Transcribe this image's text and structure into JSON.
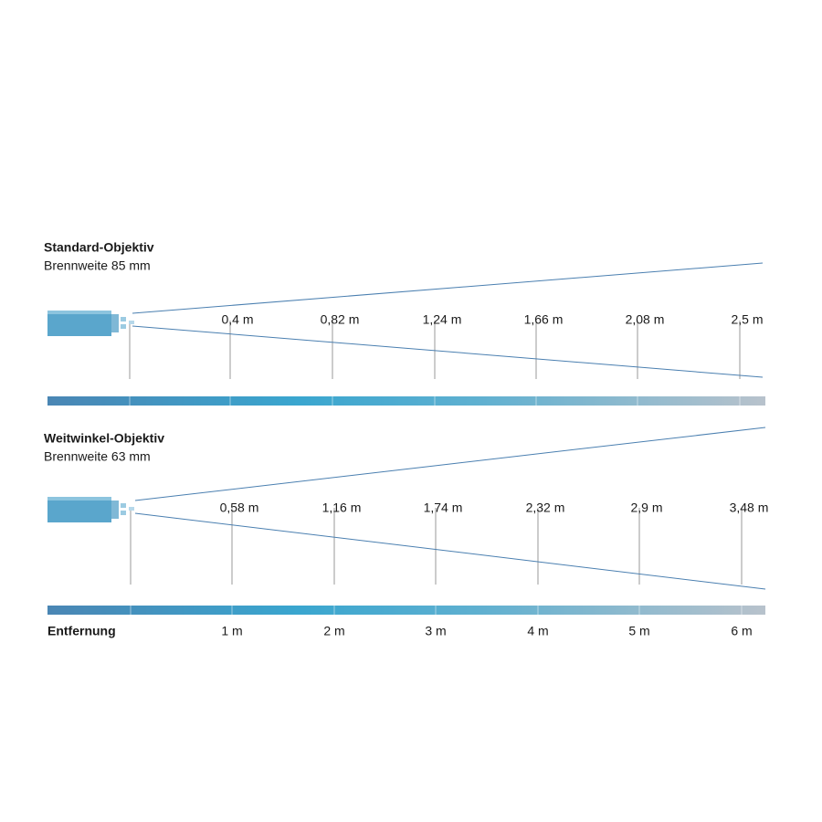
{
  "panels": [
    {
      "title": "Standard-Objektiv",
      "subtitle": "Brennweite 85 mm",
      "labels": [
        "0,4 m",
        "0,82 m",
        "1,24 m",
        "1,66 m",
        "2,08 m",
        "2,5 m"
      ]
    },
    {
      "title": "Weitwinkel-Objektiv",
      "subtitle": "Brennweite 63 mm",
      "labels": [
        "0,58 m",
        "1,16 m",
        "1,74 m",
        "2,32 m",
        "2,9 m",
        "3,48 m"
      ]
    }
  ],
  "axis": {
    "title": "Entfernung",
    "labels": [
      "1 m",
      "2 m",
      "3 m",
      "4 m",
      "5 m",
      "6 m"
    ]
  }
}
